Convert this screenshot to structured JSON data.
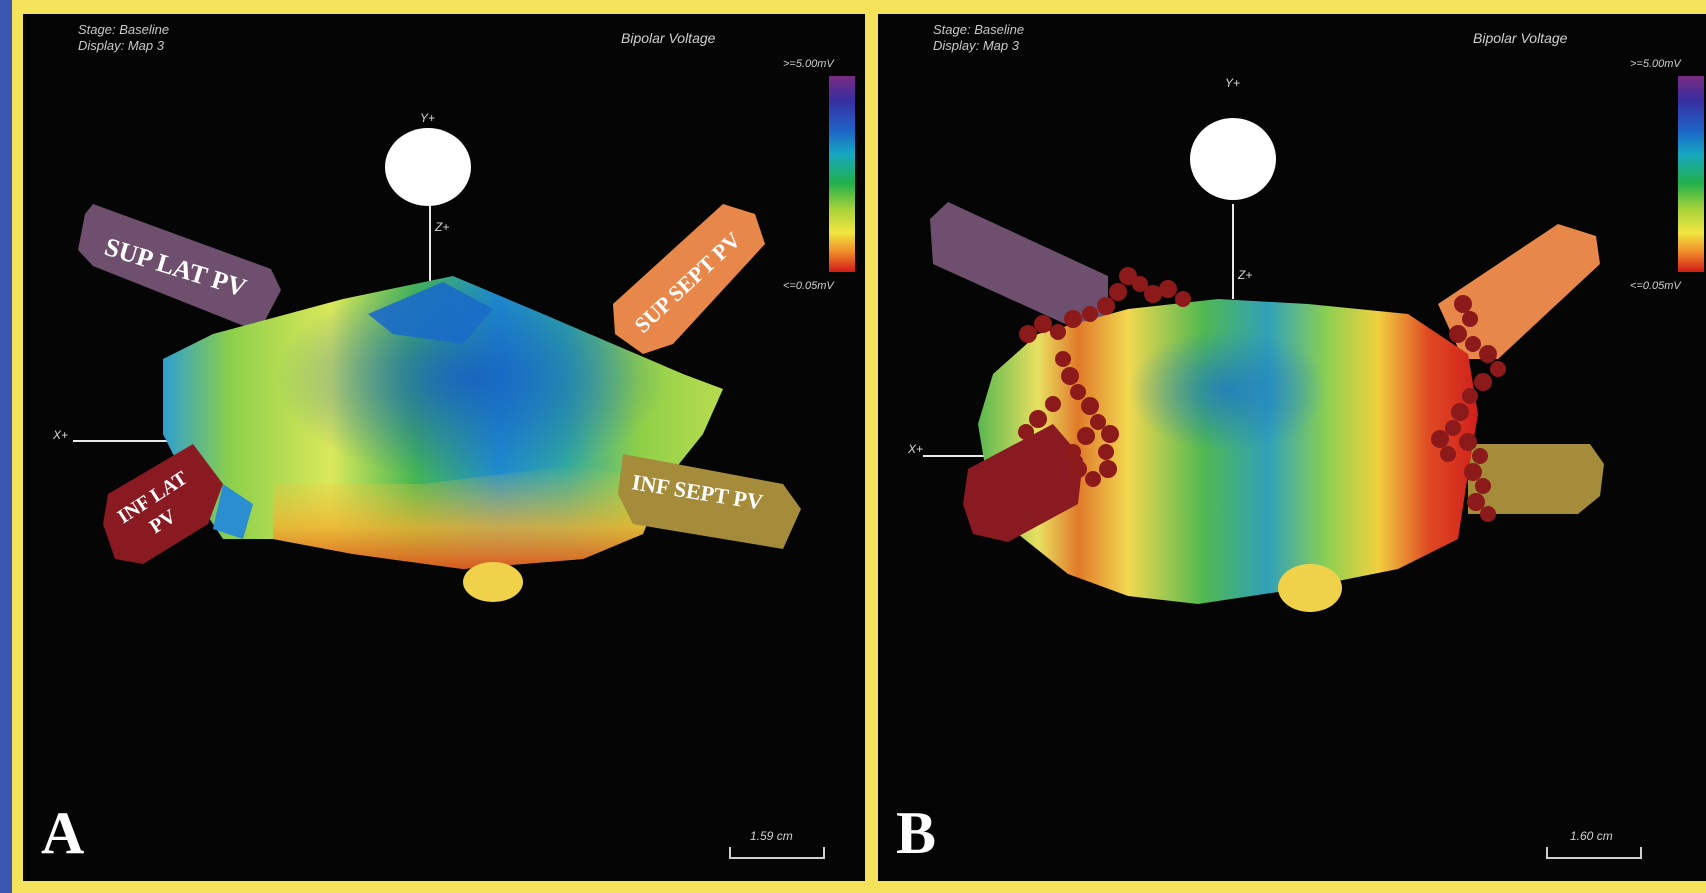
{
  "panels": [
    {
      "letter": "A",
      "stage": "Stage: Baseline",
      "display": "Display: Map 3",
      "map_title": "Bipolar Voltage",
      "scale_max": ">=5.00mV",
      "scale_min": "<=0.05mV",
      "axis_y": "Y+",
      "axis_z": "Z+",
      "axis_x": "X+",
      "scale_bar": "1.59 cm",
      "veins": {
        "sup_lat": "SUP LAT PV",
        "sup_sept": "SUP SEPT PV",
        "inf_lat_1": "INF LAT",
        "inf_lat_2": "PV",
        "inf_sept": "INF SEPT PV"
      }
    },
    {
      "letter": "B",
      "stage": "Stage: Baseline",
      "display": "Display: Map 3",
      "map_title": "Bipolar Voltage",
      "scale_max": ">=5.00mV",
      "scale_min": "<=0.05mV",
      "axis_y": "Y+",
      "axis_z": "Z+",
      "axis_x": "X+",
      "scale_bar": "1.60 cm"
    }
  ],
  "colors": {
    "background": "#050505",
    "frame": "#f4e35a",
    "outer": "#3b57b4",
    "sup_lat_pv": "#6e4f6e",
    "sup_sept_pv": "#e8874a",
    "inf_lat_pv": "#8a1a22",
    "inf_sept_pv": "#a48c3a",
    "ablation_lesion": "#8c1a1a"
  }
}
